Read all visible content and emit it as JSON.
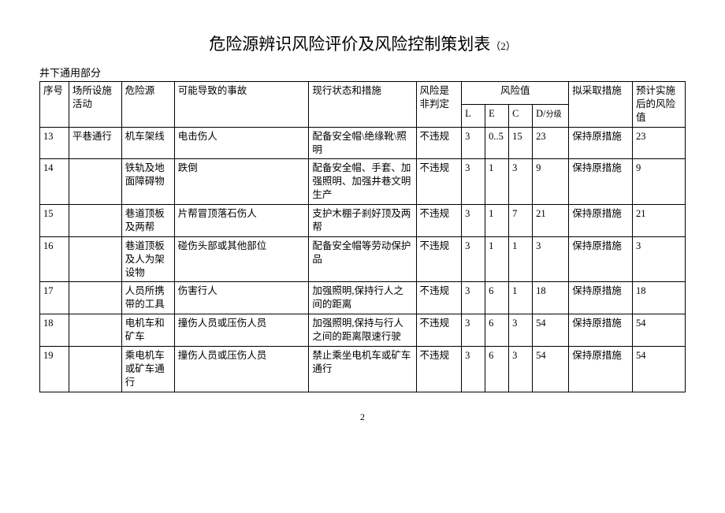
{
  "title_main": "危险源辨识风险评价及风险控制策划表",
  "title_suffix": "（2）",
  "subtitle": "井下通用部分",
  "headers": {
    "seq": "序号",
    "place": "场所设施活动",
    "source": "危险源",
    "accident": "可能导致的事故",
    "current": "现行状态和措施",
    "judge": "风险是非判定",
    "risk_group": "风险值",
    "L": "L",
    "E": "E",
    "C": "C",
    "D": "D/",
    "D_sub": "分级",
    "plan": "拟采取措施",
    "post": "预计实施后的风险值"
  },
  "rows": [
    {
      "seq": "13",
      "place": "平巷通行",
      "source": "机车架线",
      "accident": "电击伤人",
      "current": "配备安全帽\\绝缘靴\\照明",
      "judge": "不违规",
      "L": "3",
      "E": "0..5",
      "C": "15",
      "D": "23",
      "plan": "保持原措施",
      "post": "23"
    },
    {
      "seq": "14",
      "place": "",
      "source": "铁轨及地面障碍物",
      "accident": "跌倒",
      "current": "配备安全帽、手套、加强照明、加强井巷文明生产",
      "judge": "不违规",
      "L": "3",
      "E": "1",
      "C": "3",
      "D": "9",
      "plan": "保持原措施",
      "post": "9"
    },
    {
      "seq": "15",
      "place": "",
      "source": "巷道顶板及两帮",
      "accident": "片帮冒顶落石伤人",
      "current": "支护木棚子刹好顶及两帮",
      "judge": "不违规",
      "L": "3",
      "E": "1",
      "C": "7",
      "D": "21",
      "plan": "保持原措施",
      "post": "21"
    },
    {
      "seq": "16",
      "place": "",
      "source": "巷道顶板及人为架设物",
      "accident": "碰伤头部或其他部位",
      "current": "配备安全帽等劳动保护品",
      "judge": "不违规",
      "L": "3",
      "E": "1",
      "C": "1",
      "D": "3",
      "plan": "保持原措施",
      "post": "3"
    },
    {
      "seq": "17",
      "place": "",
      "source": "人员所携带的工具",
      "accident": "伤害行人",
      "current": "加强照明,保持行人之间的距离",
      "judge": "不违规",
      "L": "3",
      "E": "6",
      "C": "1",
      "D": "18",
      "plan": "保持原措施",
      "post": "18"
    },
    {
      "seq": "18",
      "place": "",
      "source": "电机车和矿车",
      "accident": "撞伤人员或压伤人员",
      "current": "加强照明,保持与行人之间的距离限速行驶",
      "judge": "不违规",
      "L": "3",
      "E": "6",
      "C": "3",
      "D": "54",
      "plan": "保持原措施",
      "post": "54"
    },
    {
      "seq": "19",
      "place": "",
      "source": "乘电机车或矿车通行",
      "accident": "撞伤人员或压伤人员",
      "current": "禁止乘坐电机车或矿车通行",
      "judge": "不违规",
      "L": "3",
      "E": "6",
      "C": "3",
      "D": "54",
      "plan": "保持原措施",
      "post": "54"
    }
  ],
  "page_number": "2"
}
